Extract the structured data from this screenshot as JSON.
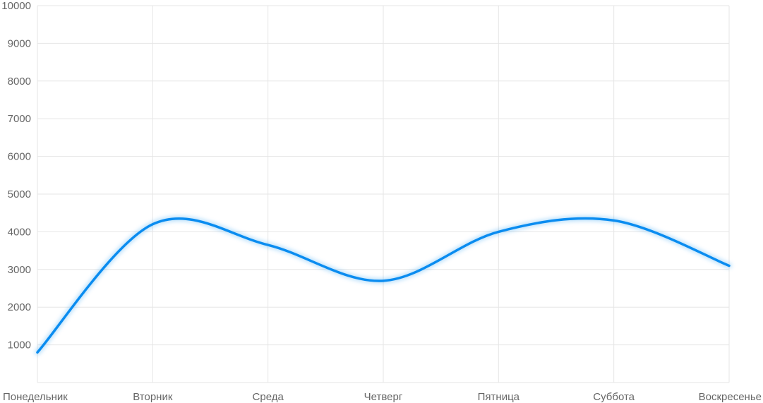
{
  "chart_data": {
    "type": "line",
    "smooth": true,
    "categories": [
      "Понедельник",
      "Вторник",
      "Среда",
      "Четверг",
      "Пятница",
      "Суббота",
      "Воскресенье"
    ],
    "series": [
      {
        "values": [
          800,
          4200,
          3650,
          2700,
          4000,
          4300,
          3100
        ],
        "color": "#0a8cf0"
      }
    ],
    "ylim": [
      0,
      10000
    ],
    "yticks": [
      1000,
      2000,
      3000,
      4000,
      5000,
      6000,
      7000,
      8000,
      9000,
      10000
    ],
    "grid": true,
    "legend": false
  }
}
